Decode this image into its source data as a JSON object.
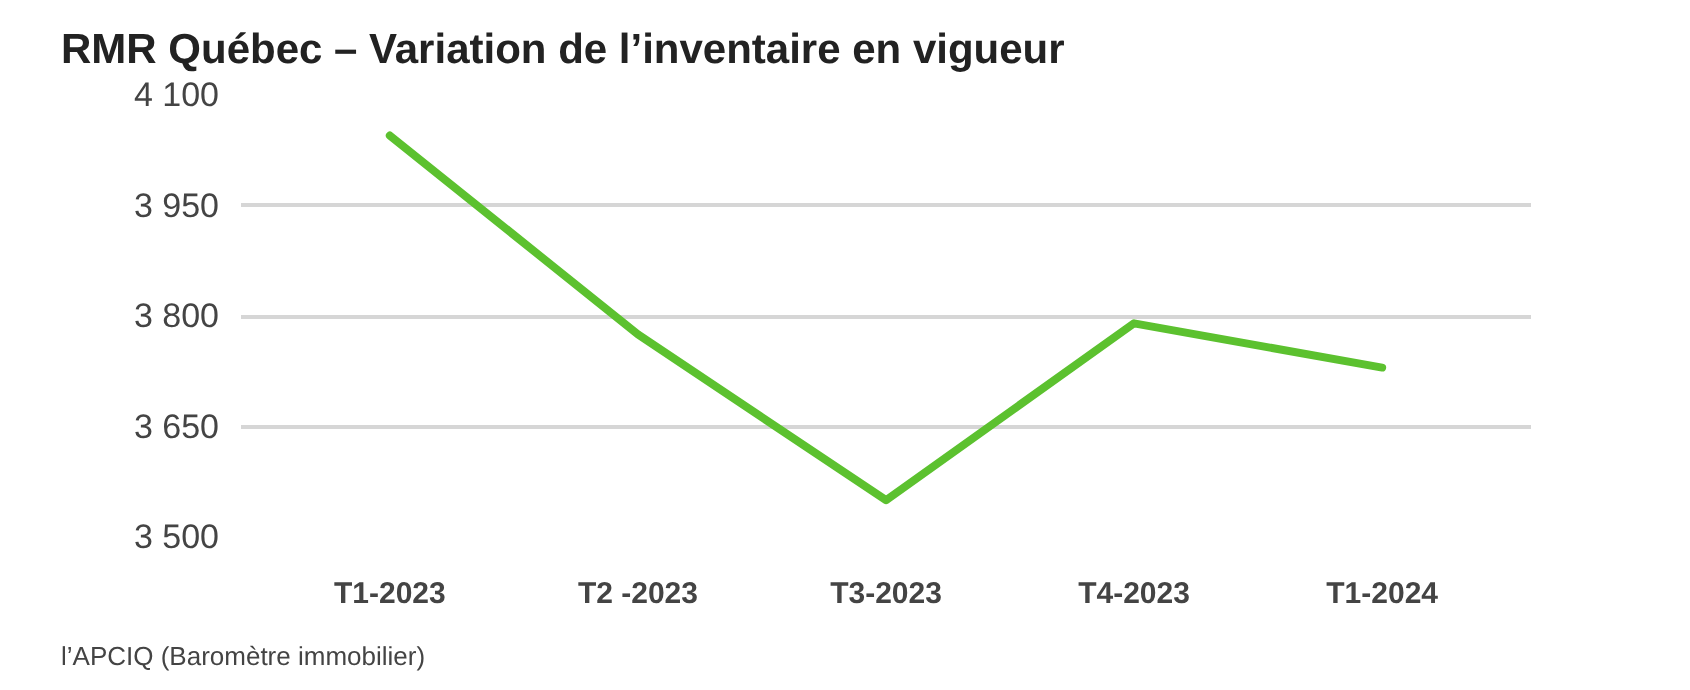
{
  "chart_data": {
    "type": "line",
    "title": "RMR Québec – Variation de l’inventaire en vigueur",
    "categories": [
      "T1-2023",
      "T2 -2023",
      "T3-2023",
      "T4-2023",
      "T1-2024"
    ],
    "series": [
      {
        "color": "#5cc12f",
        "values": [
          4045,
          3775,
          3550,
          3790,
          3730
        ]
      }
    ],
    "ylim": [
      3500,
      4100
    ],
    "yticks": [
      {
        "value": 3500,
        "label": "3 500"
      },
      {
        "value": 3650,
        "label": "3 650"
      },
      {
        "value": 3800,
        "label": "3 800"
      },
      {
        "value": 3950,
        "label": "3 950"
      },
      {
        "value": 4100,
        "label": "4 100"
      }
    ],
    "grid": "y",
    "marker": "none",
    "line_style": "solid",
    "annotations": [
      "l’APCIQ (Baromètre immobilier)"
    ]
  }
}
